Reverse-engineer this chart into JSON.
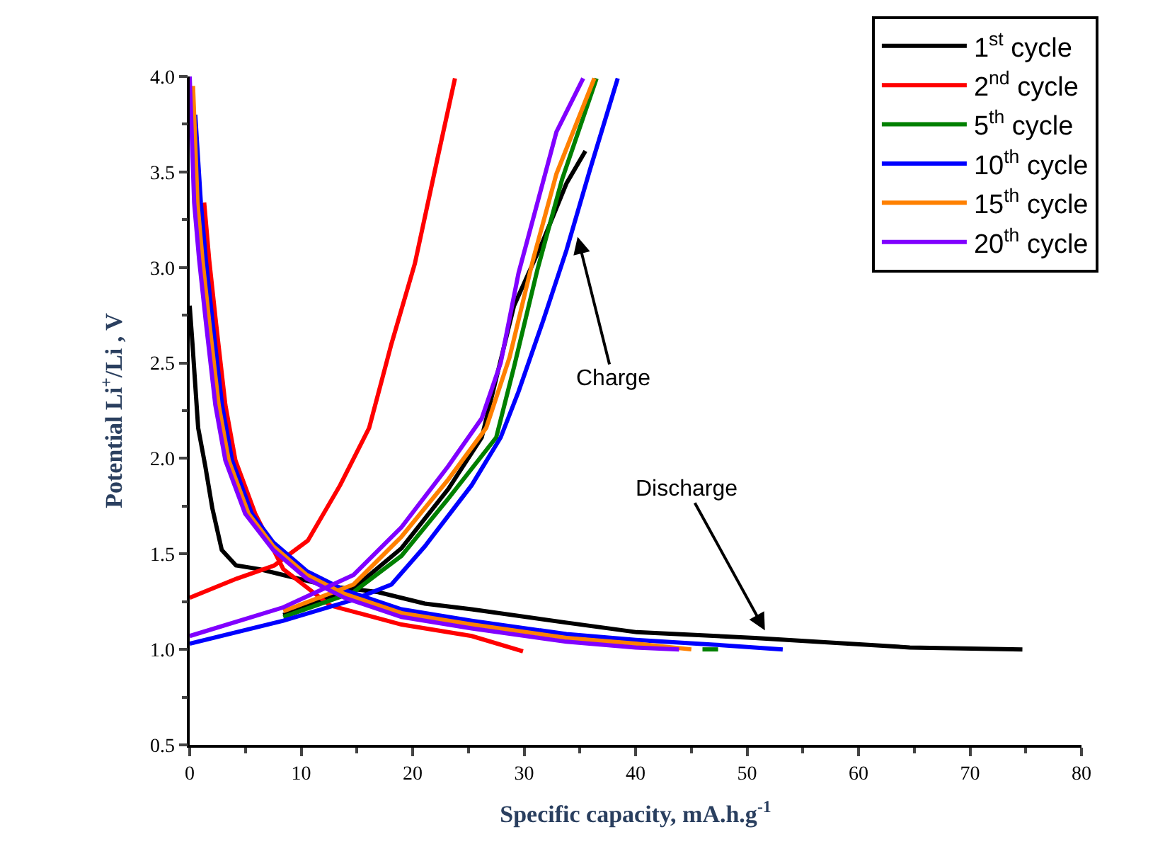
{
  "chart_data": {
    "type": "line",
    "xlabel": "Specific capacity, mA.h.g$^{-1}$",
    "ylabel": "Potential Li$^{+}$/Li , V",
    "xlim": [
      0,
      80
    ],
    "xticks": [
      0,
      10,
      20,
      30,
      40,
      50,
      60,
      70,
      80
    ],
    "ylim": [
      0.5,
      4.0
    ],
    "yticks": [
      0.5,
      {
        "value": 1,
        "label": "1.0"
      },
      1.5,
      {
        "value": 2,
        "label": "2.0"
      },
      2.5,
      {
        "value": 3,
        "label": "3.0"
      },
      3.5,
      {
        "value": 4,
        "label": "4.0"
      }
    ],
    "legend": "top right",
    "line_style": "solid",
    "annotations": [
      {
        "text": "Charge",
        "x": 34.8,
        "y": 3.16
      },
      {
        "text": "Discharge",
        "x": 51.6,
        "y": 1.1
      }
    ],
    "series": [
      {
        "name": "1$^{st}$ cycle",
        "color": "#000000",
        "x": [
          0,
          0.25,
          0.76,
          1.4,
          2.03,
          2.88,
          4.15,
          6.26,
          8.38,
          12.6,
          16.9,
          21.1,
          25.3,
          33.8,
          40.1,
          50.7,
          64.6,
          74.7,
          null,
          8.4,
          14.7,
          19.0,
          23.2,
          26.2,
          29.1,
          31.7,
          33.8,
          35.5
        ],
        "values": [
          2.8,
          2.6,
          2.16,
          1.96,
          1.74,
          1.52,
          1.44,
          1.42,
          1.39,
          1.33,
          1.3,
          1.24,
          1.21,
          1.14,
          1.09,
          1.06,
          1.01,
          1.0,
          null,
          1.18,
          1.32,
          1.53,
          1.84,
          2.11,
          2.8,
          3.14,
          3.44,
          3.61
        ]
      },
      {
        "name": "2$^{nd}$ cycle",
        "color": "#ff0000",
        "x": [
          1.3,
          1.75,
          2.38,
          3.2,
          4.1,
          5.88,
          8.4,
          12.6,
          19.0,
          25.3,
          29.9,
          null,
          0,
          4.2,
          7.6,
          10.6,
          13.5,
          16.1,
          18.1,
          20.2,
          22.3,
          23.8
        ],
        "values": [
          3.34,
          3.04,
          2.7,
          2.28,
          1.99,
          1.71,
          1.42,
          1.23,
          1.13,
          1.07,
          0.99,
          null,
          1.27,
          1.37,
          1.44,
          1.57,
          1.86,
          2.16,
          2.6,
          3.02,
          3.59,
          3.99
        ]
      },
      {
        "name": "5$^{th}$ cycle",
        "color": "#008000",
        "x": [
          46,
          47.4,
          null,
          8.4,
          14.7,
          19.0,
          23.2,
          27.5,
          29.1,
          31.2,
          33.4,
          36.5
        ],
        "values": [
          1.0,
          1.0,
          null,
          1.17,
          1.3,
          1.49,
          1.79,
          2.11,
          2.48,
          2.99,
          3.46,
          3.99
        ]
      },
      {
        "name": "10$^{th}$ cycle",
        "color": "#0000ff",
        "x": [
          0.5,
          1.0,
          1.45,
          2.08,
          2.9,
          3.8,
          5.58,
          7.5,
          10.5,
          13.9,
          19.0,
          25.3,
          33.8,
          40,
          47,
          53.2,
          null,
          0,
          8.4,
          14.7,
          18.1,
          21.1,
          25.3,
          27.9,
          29.5,
          31.7,
          33.8,
          35.9,
          38.4
        ],
        "values": [
          3.8,
          3.34,
          3.04,
          2.7,
          2.28,
          1.99,
          1.71,
          1.56,
          1.41,
          1.31,
          1.21,
          1.15,
          1.08,
          1.05,
          1.025,
          1.0,
          null,
          1.03,
          1.15,
          1.26,
          1.34,
          1.54,
          1.86,
          2.11,
          2.35,
          2.72,
          3.09,
          3.51,
          3.99
        ]
      },
      {
        "name": "15$^{th}$ cycle",
        "color": "#ff8000",
        "x": [
          0.3,
          0.7,
          1.15,
          1.78,
          2.6,
          3.5,
          5.28,
          7.5,
          10.5,
          13.9,
          19.0,
          25.3,
          33.8,
          40,
          45,
          null,
          8.4,
          14.7,
          19.0,
          23.2,
          26.6,
          28.7,
          30.8,
          32.9,
          36.3
        ],
        "values": [
          3.95,
          3.34,
          3.04,
          2.7,
          2.28,
          1.99,
          1.71,
          1.54,
          1.39,
          1.29,
          1.19,
          1.13,
          1.06,
          1.03,
          1.0,
          null,
          1.2,
          1.34,
          1.59,
          1.89,
          2.16,
          2.53,
          3.04,
          3.49,
          3.99
        ]
      },
      {
        "name": "20$^{th}$ cycle",
        "color": "#8000ff",
        "x": [
          0,
          0.4,
          0.85,
          1.48,
          2.3,
          3.2,
          4.98,
          7.5,
          10.5,
          13.9,
          19.0,
          25.3,
          33.8,
          40,
          43.9,
          null,
          0,
          8.4,
          14.7,
          19.0,
          23.2,
          26.2,
          27.9,
          29.5,
          31.2,
          32.9,
          35.3
        ],
        "values": [
          4.0,
          3.34,
          3.04,
          2.7,
          2.28,
          1.99,
          1.71,
          1.52,
          1.37,
          1.27,
          1.17,
          1.11,
          1.04,
          1.01,
          1.0,
          null,
          1.07,
          1.22,
          1.39,
          1.64,
          1.96,
          2.21,
          2.5,
          2.97,
          3.34,
          3.71,
          3.99
        ]
      }
    ]
  }
}
